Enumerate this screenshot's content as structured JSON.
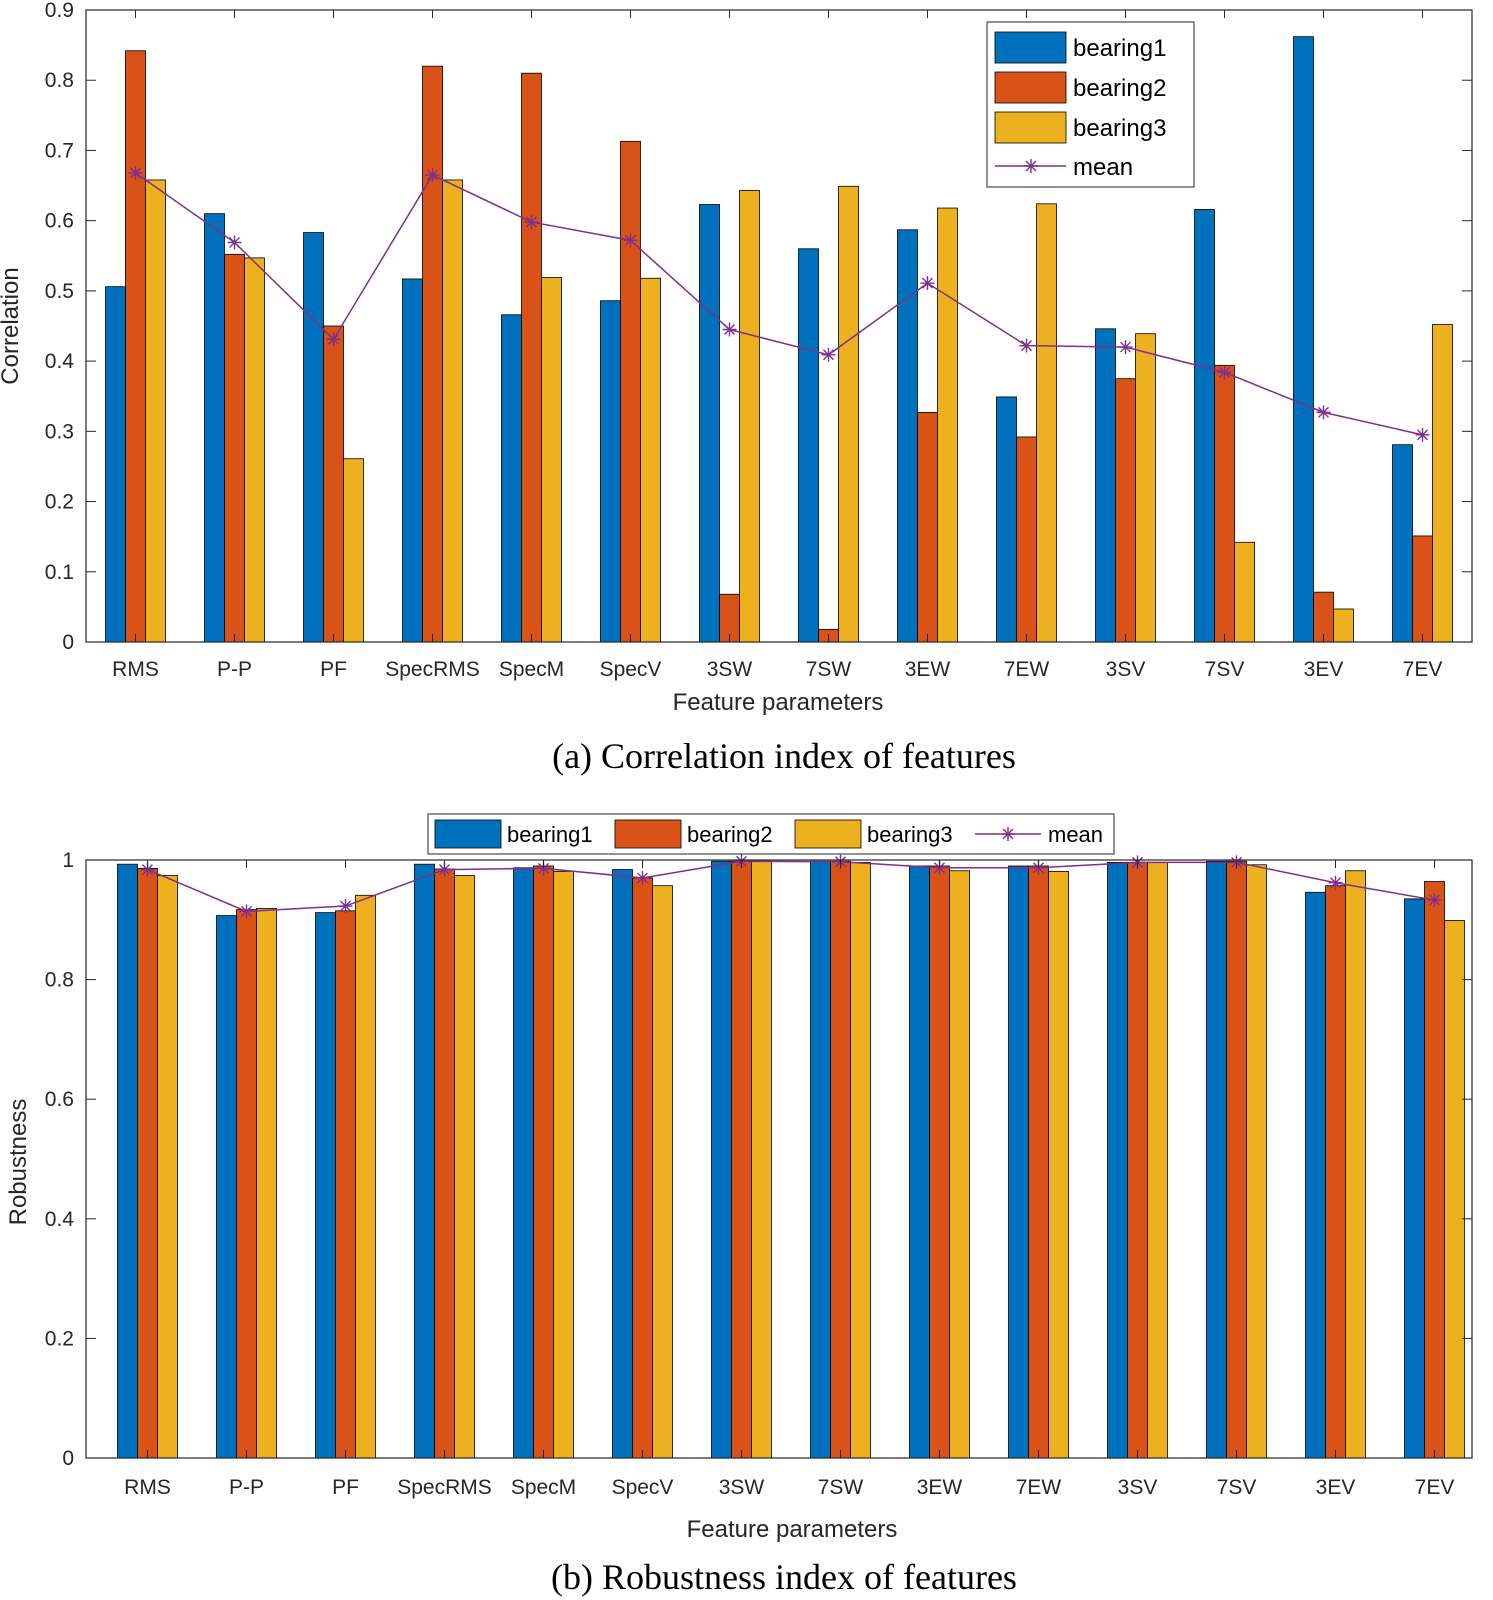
{
  "chart_data": [
    {
      "type": "bar",
      "caption": "(a) Correlation index of features",
      "xlabel": "Feature parameters",
      "ylabel": "Correlation",
      "ylim": [
        0,
        0.9
      ],
      "yticks": [
        "0",
        "0.1",
        "0.2",
        "0.3",
        "0.4",
        "0.5",
        "0.6",
        "0.7",
        "0.8",
        "0.9"
      ],
      "grid": false,
      "legend_position": "top-right",
      "categories": [
        "RMS",
        "P-P",
        "PF",
        "SpecRMS",
        "SpecM",
        "SpecV",
        "3SW",
        "7SW",
        "3EW",
        "7EW",
        "3SV",
        "7SV",
        "3EV",
        "7EV"
      ],
      "series": [
        {
          "name": "bearing1",
          "color": "#0072bd",
          "values": [
            0.506,
            0.61,
            0.583,
            0.517,
            0.466,
            0.486,
            0.623,
            0.56,
            0.587,
            0.349,
            0.446,
            0.616,
            0.862,
            0.281
          ]
        },
        {
          "name": "bearing2",
          "color": "#d95319",
          "values": [
            0.842,
            0.552,
            0.45,
            0.82,
            0.81,
            0.713,
            0.068,
            0.018,
            0.327,
            0.292,
            0.375,
            0.394,
            0.071,
            0.151
          ]
        },
        {
          "name": "bearing3",
          "color": "#edb120",
          "values": [
            0.658,
            0.547,
            0.261,
            0.658,
            0.519,
            0.518,
            0.643,
            0.649,
            0.618,
            0.624,
            0.439,
            0.142,
            0.047,
            0.452
          ]
        }
      ],
      "line_series": {
        "name": "mean",
        "color": "#7e2f8e",
        "values": [
          0.668,
          0.569,
          0.431,
          0.665,
          0.598,
          0.572,
          0.445,
          0.409,
          0.511,
          0.422,
          0.42,
          0.384,
          0.327,
          0.295
        ]
      }
    },
    {
      "type": "bar",
      "caption": "(b) Robustness index of features",
      "xlabel": "Feature parameters",
      "ylabel": "Robustness",
      "ylim": [
        0,
        1
      ],
      "yticks": [
        "0",
        "0.2",
        "0.4",
        "0.6",
        "0.8",
        "1"
      ],
      "grid": false,
      "legend_position": "top-center",
      "categories": [
        "RMS",
        "P-P",
        "PF",
        "SpecRMS",
        "SpecM",
        "SpecV",
        "3SW",
        "7SW",
        "3EW",
        "7EW",
        "3SV",
        "7SV",
        "3EV",
        "7EV"
      ],
      "series": [
        {
          "name": "bearing1",
          "color": "#0072bd",
          "values": [
            0.993,
            0.907,
            0.912,
            0.993,
            0.987,
            0.984,
            0.998,
            0.998,
            0.99,
            0.99,
            0.996,
            0.998,
            0.946,
            0.935
          ]
        },
        {
          "name": "bearing2",
          "color": "#d95319",
          "values": [
            0.986,
            0.917,
            0.915,
            0.985,
            0.99,
            0.97,
            0.998,
            0.998,
            0.99,
            0.99,
            0.996,
            0.998,
            0.957,
            0.964
          ]
        },
        {
          "name": "bearing3",
          "color": "#edb120",
          "values": [
            0.974,
            0.919,
            0.941,
            0.974,
            0.981,
            0.957,
            0.998,
            0.996,
            0.982,
            0.981,
            0.996,
            0.992,
            0.982,
            0.899
          ]
        }
      ],
      "line_series": {
        "name": "mean",
        "color": "#7e2f8e",
        "values": [
          0.984,
          0.914,
          0.923,
          0.984,
          0.986,
          0.97,
          0.998,
          0.997,
          0.987,
          0.987,
          0.996,
          0.996,
          0.962,
          0.933
        ]
      }
    }
  ]
}
